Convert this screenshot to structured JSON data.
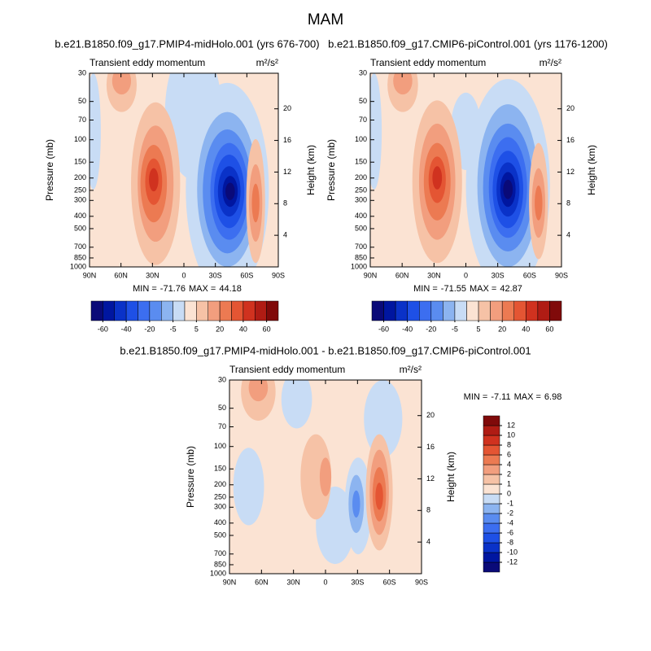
{
  "title": "MAM",
  "chart_data": [
    {
      "type": "contour",
      "title": "b.e21.B1850.f09_g17.PMIP4-midHolo.001 (yrs 676-700)",
      "subtitle": "Transient eddy momentum",
      "units": "m²/s²",
      "ylabel": "Pressure (mb)",
      "y2label": "Height (km)",
      "ylog": true,
      "xlim": [
        90,
        -90
      ],
      "xticks": [
        {
          "value": 90,
          "label": "90N"
        },
        {
          "value": 60,
          "label": "60N"
        },
        {
          "value": 30,
          "label": "30N"
        },
        0,
        {
          "value": -30,
          "label": "30S"
        },
        {
          "value": -60,
          "label": "60S"
        },
        {
          "value": -90,
          "label": "90S"
        }
      ],
      "ylim": [
        1000,
        30
      ],
      "yticks": [
        30,
        50,
        70,
        100,
        150,
        200,
        250,
        300,
        400,
        500,
        700,
        850,
        1000
      ],
      "y2lim": [
        0,
        24.5
      ],
      "y2ticks": [
        4,
        8,
        12,
        16,
        20
      ],
      "min_label": "MIN =",
      "min": -71.76,
      "max_label": "MAX =",
      "max": 44.18,
      "colorbar": {
        "orientation": "horizontal",
        "ticks": [
          -60,
          -40,
          -20,
          -5,
          5,
          20,
          40,
          60
        ],
        "colors": [
          "#0a0a78",
          "#0016a0",
          "#0a32c8",
          "#1e50e6",
          "#3c6ef0",
          "#5a8cf0",
          "#8cb4f0",
          "#c8dcf5",
          "#fbe3d3",
          "#f6c2a6",
          "#f29e7e",
          "#ec7a52",
          "#e45533",
          "#d0321f",
          "#b01c14",
          "#800a0a"
        ]
      }
    },
    {
      "type": "contour",
      "title": "b.e21.B1850.f09_g17.CMIP6-piControl.001 (yrs 1176-1200)",
      "subtitle": "Transient eddy momentum",
      "units": "m²/s²",
      "ylabel": "Pressure (mb)",
      "y2label": "Height (km)",
      "ylog": true,
      "xlim": [
        90,
        -90
      ],
      "xticks": [
        {
          "value": 90,
          "label": "90N"
        },
        {
          "value": 60,
          "label": "60N"
        },
        {
          "value": 30,
          "label": "30N"
        },
        0,
        {
          "value": -30,
          "label": "30S"
        },
        {
          "value": -60,
          "label": "60S"
        },
        {
          "value": -90,
          "label": "90S"
        }
      ],
      "ylim": [
        1000,
        30
      ],
      "yticks": [
        30,
        50,
        70,
        100,
        150,
        200,
        250,
        300,
        400,
        500,
        700,
        850,
        1000
      ],
      "y2lim": [
        0,
        24.5
      ],
      "y2ticks": [
        4,
        8,
        12,
        16,
        20
      ],
      "min_label": "MIN =",
      "min": -71.55,
      "max_label": "MAX =",
      "max": 42.87,
      "colorbar": {
        "orientation": "horizontal",
        "ticks": [
          -60,
          -40,
          -20,
          -5,
          5,
          20,
          40,
          60
        ],
        "colors": [
          "#0a0a78",
          "#0016a0",
          "#0a32c8",
          "#1e50e6",
          "#3c6ef0",
          "#5a8cf0",
          "#8cb4f0",
          "#c8dcf5",
          "#fbe3d3",
          "#f6c2a6",
          "#f29e7e",
          "#ec7a52",
          "#e45533",
          "#d0321f",
          "#b01c14",
          "#800a0a"
        ]
      }
    },
    {
      "type": "contour",
      "title": "b.e21.B1850.f09_g17.PMIP4-midHolo.001 - b.e21.B1850.f09_g17.CMIP6-piControl.001",
      "subtitle": "Transient eddy momentum",
      "units": "m²/s²",
      "ylabel": "Pressure (mb)",
      "y2label": "Height (km)",
      "ylog": true,
      "xlim": [
        90,
        -90
      ],
      "xticks": [
        {
          "value": 90,
          "label": "90N"
        },
        {
          "value": 60,
          "label": "60N"
        },
        {
          "value": 30,
          "label": "30N"
        },
        0,
        {
          "value": -30,
          "label": "30S"
        },
        {
          "value": -60,
          "label": "60S"
        },
        {
          "value": -90,
          "label": "90S"
        }
      ],
      "ylim": [
        1000,
        30
      ],
      "yticks": [
        30,
        50,
        70,
        100,
        150,
        200,
        250,
        300,
        400,
        500,
        700,
        850,
        1000
      ],
      "y2lim": [
        0,
        24.5
      ],
      "y2ticks": [
        4,
        8,
        12,
        16,
        20
      ],
      "min_label": "MIN =",
      "min": -7.11,
      "max_label": "MAX =",
      "max": 6.98,
      "colorbar": {
        "orientation": "vertical",
        "ticks": [
          -12,
          -10,
          -8,
          -6,
          -4,
          -2,
          -1,
          0,
          1,
          2,
          4,
          6,
          8,
          10,
          12
        ],
        "colors": [
          "#0a0a78",
          "#0016a0",
          "#0a32c8",
          "#1e50e6",
          "#3c6ef0",
          "#5a8cf0",
          "#8cb4f0",
          "#c8dcf5",
          "#fbe3d3",
          "#f6c2a6",
          "#f29e7e",
          "#ec7a52",
          "#e45533",
          "#d0321f",
          "#b01c14",
          "#800a0a"
        ]
      }
    }
  ]
}
